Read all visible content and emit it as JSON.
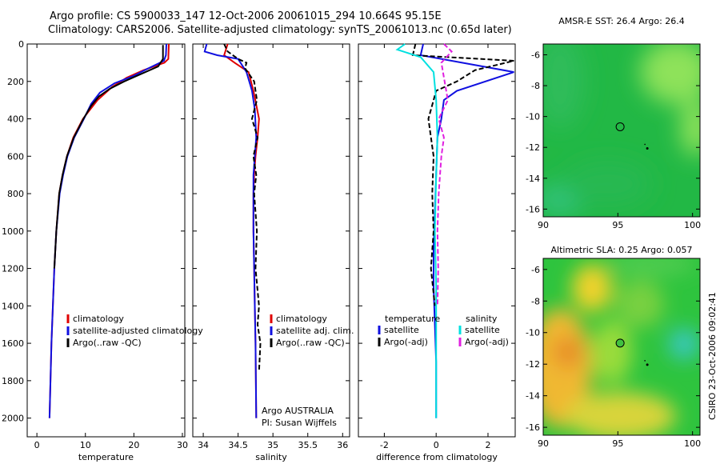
{
  "header": {
    "line1": "Argo profile: CS 5900033_147 12-Oct-2006 20061015_294 10.664S 95.15E",
    "line2": "Climatology: CARS2006. Satellite-adjusted climatology: synTS_20061013.nc (0.65d later)"
  },
  "colors": {
    "red": "#e00000",
    "blue": "#1010e0",
    "black": "#000000",
    "cyan": "#00e0e0",
    "magenta": "#e020e0"
  },
  "chart_data": [
    {
      "type": "line",
      "name": "temperature-profile",
      "xlabel": "temperature",
      "xlim": [
        -2,
        30.5
      ],
      "ylim": [
        2100,
        0
      ],
      "xticks": [
        0,
        10,
        20,
        30
      ],
      "yticks": [
        0,
        200,
        400,
        600,
        800,
        1000,
        1200,
        1400,
        1600,
        1800,
        2000
      ],
      "series": [
        {
          "name": "climatology",
          "color": "red",
          "dash": false,
          "x": [
            27.2,
            27.1,
            26.3,
            22.0,
            18.5,
            15.5,
            12.5,
            11.0,
            9.5,
            7.5,
            6.2,
            5.3,
            4.6,
            4.0,
            3.6,
            3.3,
            3.0,
            2.8,
            2.6
          ],
          "y": [
            0,
            80,
            100,
            140,
            180,
            230,
            300,
            350,
            400,
            500,
            600,
            700,
            800,
            1000,
            1200,
            1400,
            1600,
            1800,
            2000
          ]
        },
        {
          "name": "satellite-adjusted climatology",
          "color": "blue",
          "dash": false,
          "x": [
            26.7,
            26.6,
            26.2,
            23.0,
            20.0,
            16.0,
            13.0,
            11.2,
            9.7,
            7.7,
            6.3,
            5.4,
            4.7,
            4.0,
            3.6,
            3.3,
            3.0,
            2.8,
            2.6
          ],
          "y": [
            0,
            60,
            90,
            130,
            170,
            210,
            260,
            320,
            400,
            500,
            600,
            700,
            800,
            1000,
            1200,
            1400,
            1600,
            1800,
            2000
          ]
        },
        {
          "name": "Argo(..raw -QC)",
          "color": "black",
          "dash": false,
          "x": [
            26.0,
            26.0,
            25.0,
            21.5,
            18.0,
            15.0,
            12.8,
            11.2,
            9.6,
            7.6,
            6.2,
            5.3,
            4.6,
            4.0,
            3.6
          ],
          "y": [
            5,
            80,
            120,
            160,
            200,
            240,
            280,
            330,
            400,
            500,
            600,
            700,
            800,
            1000,
            1200
          ]
        }
      ],
      "legend": [
        "climatology",
        "satellite-adjusted climatology",
        "Argo(..raw -QC)"
      ]
    },
    {
      "type": "line",
      "name": "salinity-profile",
      "xlabel": "salinity",
      "xlim": [
        33.85,
        36.1
      ],
      "ylim": [
        2100,
        0
      ],
      "xticks": [
        34,
        34.5,
        35,
        35.5,
        36
      ],
      "series": [
        {
          "name": "climatology",
          "color": "red",
          "dash": false,
          "x": [
            34.35,
            34.3,
            34.45,
            34.65,
            34.72,
            34.8,
            34.78,
            34.75,
            34.73,
            34.72,
            34.72,
            34.73,
            34.74,
            34.75,
            34.76
          ],
          "y": [
            0,
            60,
            100,
            150,
            250,
            400,
            500,
            600,
            700,
            800,
            1000,
            1200,
            1400,
            1600,
            2000
          ]
        },
        {
          "name": "satellite adj. clim.",
          "color": "blue",
          "dash": false,
          "x": [
            34.05,
            34.02,
            34.2,
            34.5,
            34.62,
            34.7,
            34.74,
            34.76,
            34.74,
            34.72,
            34.72,
            34.72,
            34.73,
            34.74,
            34.75,
            34.76
          ],
          "y": [
            0,
            40,
            60,
            80,
            150,
            250,
            350,
            500,
            600,
            700,
            800,
            1000,
            1200,
            1400,
            1600,
            2000
          ]
        },
        {
          "name": "Argo(..raw -QC)",
          "color": "black",
          "dash": true,
          "x": [
            34.3,
            34.35,
            34.5,
            34.62,
            34.6,
            34.73,
            34.77,
            34.7,
            34.78,
            34.72,
            34.76,
            34.73,
            34.77,
            34.75,
            34.8,
            34.78,
            34.82,
            34.8
          ],
          "y": [
            0,
            40,
            80,
            100,
            130,
            200,
            300,
            400,
            500,
            600,
            700,
            800,
            1000,
            1200,
            1400,
            1500,
            1600,
            1750
          ]
        }
      ],
      "legend": [
        "climatology",
        "satellite adj. clim.",
        "Argo(..raw -QC)"
      ],
      "annotations": [
        "Argo AUSTRALIA",
        "PI: Susan Wijffels"
      ]
    },
    {
      "type": "line",
      "name": "difference-profile",
      "xlabel": "difference from climatology",
      "xlim": [
        -3.0,
        3.05
      ],
      "ylim": [
        2100,
        0
      ],
      "xticks": [
        -2,
        0,
        2
      ],
      "series": [
        {
          "name": "temperature satellite",
          "color": "blue",
          "dash": false,
          "x": [
            -0.5,
            -0.6,
            3.0,
            0.8,
            0.3,
            0.2,
            0.05,
            0.0,
            -0.05,
            -0.1,
            -0.1,
            -0.05,
            0.0,
            0.0
          ],
          "y": [
            0,
            60,
            150,
            250,
            300,
            400,
            500,
            700,
            900,
            1100,
            1300,
            1500,
            1700,
            2000
          ]
        },
        {
          "name": "temperature Argo(-adj)",
          "color": "black",
          "dash": true,
          "x": [
            -0.8,
            -0.9,
            3.0,
            1.5,
            0.8,
            0.0,
            -0.3,
            -0.2,
            -0.1,
            -0.15,
            -0.1,
            -0.2,
            -0.05
          ],
          "y": [
            0,
            60,
            90,
            140,
            200,
            250,
            400,
            500,
            600,
            800,
            1000,
            1200,
            1400
          ]
        },
        {
          "name": "salinity satellite",
          "color": "cyan",
          "dash": false,
          "x": [
            -1.2,
            -1.5,
            -0.6,
            -0.1,
            0.0,
            0.05,
            0.0,
            -0.05,
            0.0,
            0.0,
            0.0,
            0.0
          ],
          "y": [
            0,
            30,
            70,
            150,
            300,
            500,
            700,
            1000,
            1300,
            1600,
            1800,
            2000
          ]
        },
        {
          "name": "salinity Argo(-adj)",
          "color": "magenta",
          "dash": true,
          "x": [
            0.3,
            0.6,
            0.2,
            0.45,
            0.1,
            0.3,
            0.2,
            0.15,
            0.1,
            0.05,
            0.08,
            0.05
          ],
          "y": [
            0,
            40,
            100,
            300,
            400,
            500,
            600,
            700,
            800,
            1000,
            1200,
            1400
          ]
        }
      ],
      "legend": {
        "left_title": "temperature",
        "right_title": "salinity",
        "items": [
          "satellite",
          "Argo(-adj)",
          "satellite",
          "Argo(-adj)"
        ]
      }
    },
    {
      "type": "heatmap",
      "name": "amsr-sst-map",
      "title": "AMSR-E SST: 26.4  Argo: 26.4",
      "xlim": [
        90,
        100.5
      ],
      "ylim": [
        -16.5,
        -5.3
      ],
      "xticks": [
        90,
        95,
        100
      ],
      "yticks": [
        -6,
        -8,
        -10,
        -12,
        -14,
        -16
      ],
      "marker": {
        "lon": 95.15,
        "lat": -10.664
      }
    },
    {
      "type": "heatmap",
      "name": "altimetric-sla-map",
      "title": "Altimetric SLA: 0.25  Argo: 0.057",
      "xlim": [
        90,
        100.5
      ],
      "ylim": [
        -16.5,
        -5.3
      ],
      "xticks": [
        90,
        95,
        100
      ],
      "yticks": [
        -6,
        -8,
        -10,
        -12,
        -14,
        -16
      ],
      "marker": {
        "lon": 95.15,
        "lat": -10.664
      }
    }
  ],
  "credit": "CSIRO 23-Oct-2006 09:02:41"
}
